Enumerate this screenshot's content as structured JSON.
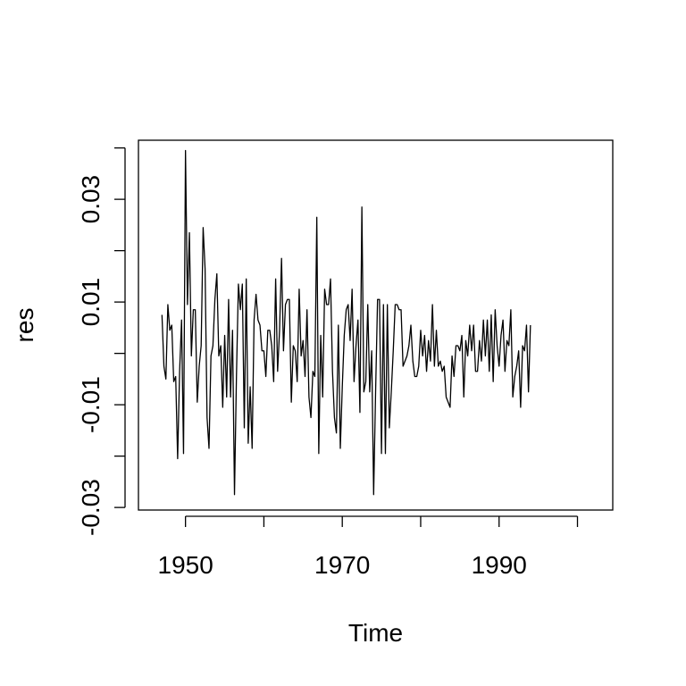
{
  "chart_data": {
    "type": "line",
    "title": "",
    "xlabel": "Time",
    "ylabel": "res",
    "xlim": [
      1944,
      2004.5
    ],
    "ylim": [
      -0.0305,
      0.0415
    ],
    "x_ticks": [
      1950,
      1960,
      1970,
      1980,
      1990,
      2000
    ],
    "x_tick_labels": [
      "1950",
      "",
      "1970",
      "",
      "1990",
      ""
    ],
    "y_ticks": [
      -0.03,
      -0.02,
      -0.01,
      0.0,
      0.01,
      0.02,
      0.03,
      0.04
    ],
    "y_tick_labels": [
      "-0.03",
      "",
      "-0.01",
      "",
      "0.01",
      "",
      "0.03",
      ""
    ],
    "grid": false,
    "series": [
      {
        "color": "#000000",
        "x_start": 1947.0,
        "x_step": 0.25,
        "values": [
          0.0075,
          -0.0025,
          -0.005,
          0.0095,
          0.0045,
          0.0055,
          -0.0055,
          -0.0045,
          -0.0205,
          -0.0035,
          0.0065,
          -0.0195,
          0.0395,
          0.0095,
          0.0235,
          -0.0005,
          0.0085,
          0.0085,
          -0.0095,
          -0.0025,
          0.0015,
          0.0245,
          0.0165,
          -0.0125,
          -0.0185,
          -0.0005,
          0.0015,
          0.0105,
          0.0155,
          -0.0005,
          0.0015,
          -0.0105,
          0.0035,
          -0.0085,
          0.0105,
          -0.0085,
          0.0045,
          -0.0275,
          -0.0045,
          0.0135,
          0.0085,
          0.0135,
          -0.0145,
          0.0145,
          -0.0175,
          -0.0065,
          -0.0185,
          0.0065,
          0.0115,
          0.0065,
          0.0055,
          0.0005,
          0.0005,
          -0.0045,
          0.0045,
          0.0045,
          0.0015,
          -0.0055,
          0.0145,
          -0.0035,
          0.0045,
          0.0185,
          0.0005,
          0.0095,
          0.0105,
          0.0105,
          -0.0095,
          0.0015,
          0.0005,
          -0.0055,
          0.0125,
          -0.0005,
          0.0025,
          -0.0045,
          0.0085,
          -0.0085,
          -0.0125,
          -0.0035,
          -0.0045,
          0.0265,
          -0.0195,
          0.0035,
          -0.0085,
          0.0125,
          0.0095,
          0.0095,
          0.0145,
          -0.0035,
          -0.0125,
          -0.0155,
          0.0055,
          -0.0185,
          -0.0065,
          0.0035,
          0.0085,
          0.0095,
          0.0025,
          0.0125,
          -0.0055,
          0.0015,
          0.0065,
          -0.0115,
          0.0285,
          -0.0075,
          -0.0055,
          0.0095,
          -0.0075,
          0.0005,
          -0.0275,
          -0.0075,
          0.0105,
          0.0105,
          -0.0195,
          0.0095,
          -0.0195,
          0.0095,
          -0.0145,
          -0.0075,
          0.0005,
          0.0095,
          0.0095,
          0.0085,
          0.0085,
          -0.0025,
          -0.0015,
          -0.0005,
          0.0015,
          0.0055,
          -0.0015,
          -0.0045,
          -0.0045,
          -0.0025,
          0.0045,
          -0.0005,
          0.0035,
          -0.0035,
          0.0025,
          -0.0015,
          0.0095,
          -0.0025,
          0.0045,
          -0.0025,
          -0.0015,
          -0.0035,
          -0.0025,
          -0.0085,
          -0.0095,
          -0.0105,
          -0.0005,
          -0.0045,
          0.0015,
          0.0015,
          0.0005,
          0.0035,
          -0.0085,
          0.0025,
          -0.0005,
          0.0055,
          0.0005,
          0.0055,
          -0.0035,
          -0.0035,
          0.0025,
          -0.0015,
          0.0065,
          -0.0005,
          0.0065,
          -0.0035,
          0.0075,
          -0.0055,
          0.0085,
          0.0015,
          -0.0025,
          0.0035,
          0.0065,
          -0.0035,
          0.0025,
          0.0015,
          0.0085,
          -0.0085,
          -0.0045,
          -0.0025,
          0.0005,
          -0.0105,
          0.0015,
          0.0005,
          0.0055,
          -0.0075,
          0.0055
        ]
      }
    ]
  }
}
